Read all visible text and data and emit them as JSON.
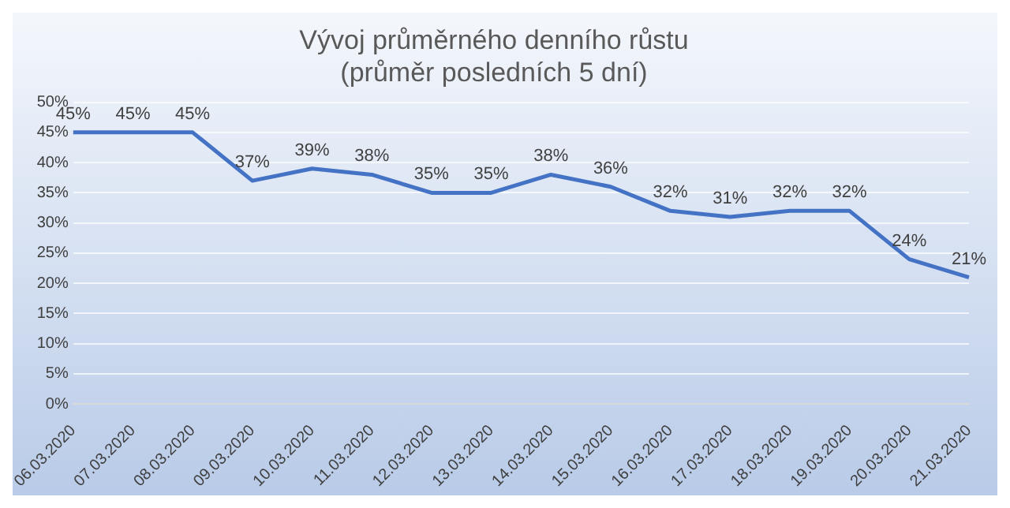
{
  "chart_data": {
    "type": "line",
    "title": "Vývoj průměrného denního růstu",
    "subtitle": "(průměr posledních 5 dní)",
    "categories": [
      "06.03.2020",
      "07.03.2020",
      "08.03.2020",
      "09.03.2020",
      "10.03.2020",
      "11.03.2020",
      "12.03.2020",
      "13.03.2020",
      "14.03.2020",
      "15.03.2020",
      "16.03.2020",
      "17.03.2020",
      "18.03.2020",
      "19.03.2020",
      "20.03.2020",
      "21.03.2020"
    ],
    "series": [
      {
        "color": "#4472c4",
        "values": [
          45,
          45,
          45,
          37,
          39,
          38,
          35,
          35,
          38,
          36,
          32,
          31,
          32,
          32,
          24,
          21
        ],
        "value_labels": [
          "45%",
          "45%",
          "45%",
          "37%",
          "39%",
          "38%",
          "35%",
          "35%",
          "38%",
          "36%",
          "32%",
          "31%",
          "32%",
          "32%",
          "24%",
          "21%"
        ]
      }
    ],
    "ylim": [
      0,
      50
    ],
    "yticks": [
      {
        "value": 0,
        "label": "0%"
      },
      {
        "value": 5,
        "label": "5%"
      },
      {
        "value": 10,
        "label": "10%"
      },
      {
        "value": 15,
        "label": "15%"
      },
      {
        "value": 20,
        "label": "20%"
      },
      {
        "value": 25,
        "label": "25%"
      },
      {
        "value": 30,
        "label": "30%"
      },
      {
        "value": 35,
        "label": "35%"
      },
      {
        "value": 40,
        "label": "40%"
      },
      {
        "value": 45,
        "label": "45%"
      },
      {
        "value": 50,
        "label": "50%"
      }
    ],
    "grid": "y",
    "legend": false,
    "marker": "none",
    "line_style": "solid"
  }
}
